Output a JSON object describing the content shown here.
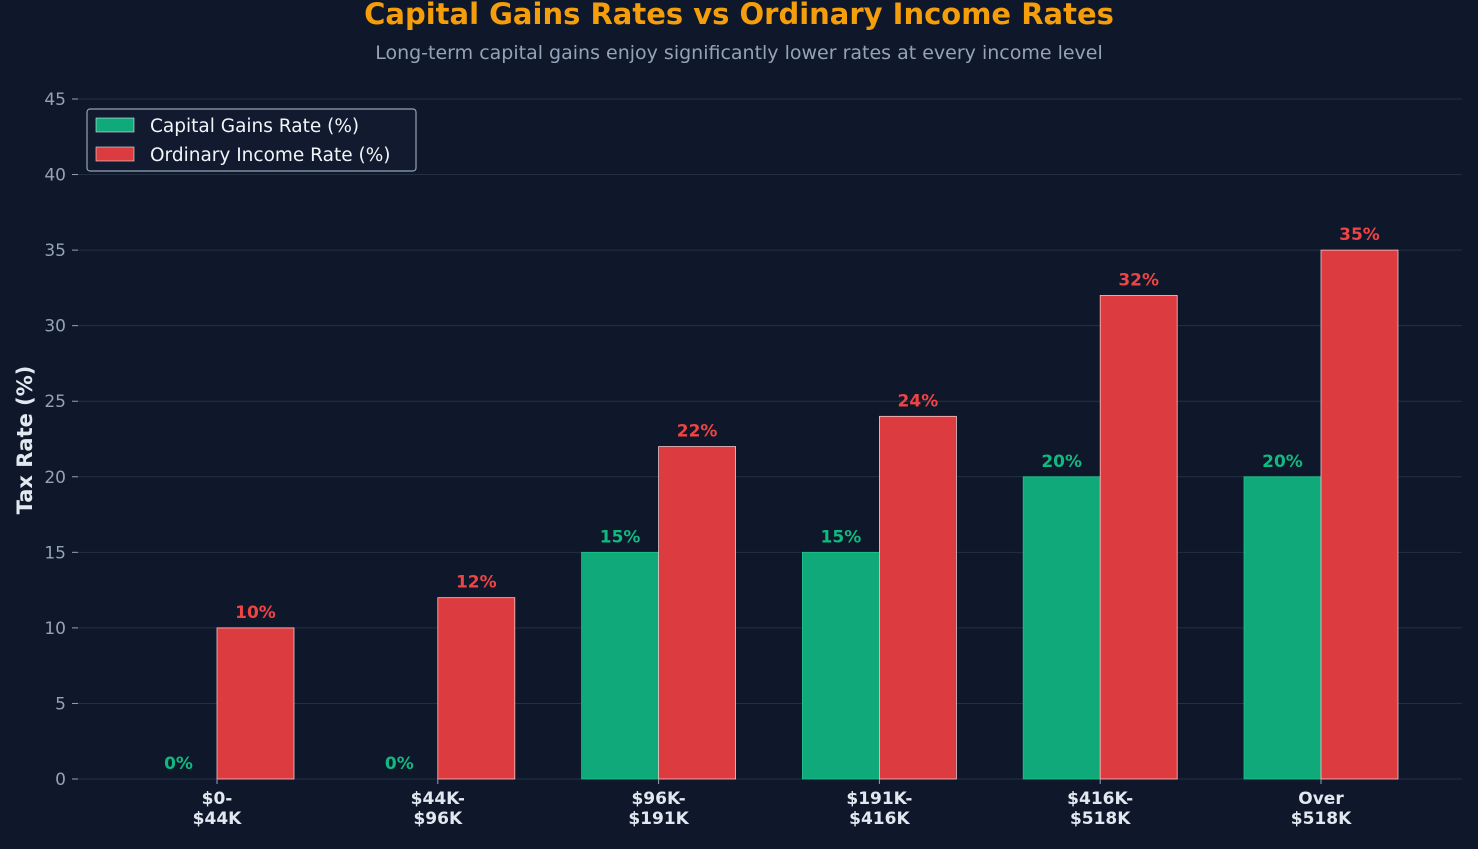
{
  "chart_data": {
    "type": "bar",
    "title": "Capital Gains Rates vs Ordinary Income Rates",
    "subtitle": "Long-term capital gains enjoy significantly lower rates at every income level",
    "xlabel": "",
    "ylabel": "Tax Rate (%)",
    "ylim": [
      0,
      45
    ],
    "yticks": [
      "0",
      "5",
      "10",
      "15",
      "20",
      "25",
      "30",
      "35",
      "40",
      "45"
    ],
    "grid": true,
    "legend_position": "top-left",
    "categories": [
      [
        "$0-",
        "$44K"
      ],
      [
        "$44K-",
        "$96K"
      ],
      [
        "$96K-",
        "$191K"
      ],
      [
        "$191K-",
        "$416K"
      ],
      [
        "$416K-",
        "$518K"
      ],
      [
        "Over",
        "$518K"
      ]
    ],
    "series": [
      {
        "name": "Capital Gains Rate (%)",
        "color": "#10a97a",
        "values": [
          0,
          0,
          15,
          15,
          20,
          20
        ],
        "labels": [
          "0%",
          "0%",
          "15%",
          "15%",
          "20%",
          "20%"
        ]
      },
      {
        "name": "Ordinary Income Rate (%)",
        "color": "#dc3c40",
        "values": [
          10,
          12,
          22,
          24,
          32,
          35
        ],
        "labels": [
          "10%",
          "12%",
          "22%",
          "24%",
          "32%",
          "35%"
        ]
      }
    ]
  },
  "colors": {
    "background": "#0f172a",
    "title": "#f59e0b",
    "subtitle": "#94a3b8",
    "axis_text": "#94a3b8",
    "category_text": "#e2e8f0",
    "ylabel_text": "#e2e8f0",
    "gridline": "#233044",
    "legend_border": "#94a3b8",
    "legend_text": "#f1f5f9",
    "capital_label": "#10b981",
    "income_label": "#ef4444"
  }
}
